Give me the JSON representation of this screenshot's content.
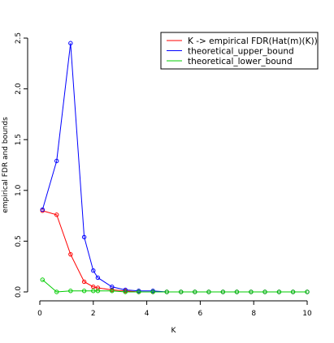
{
  "chart_data": {
    "type": "line",
    "xlabel": "K",
    "ylabel": "empirical FDR and bounds",
    "xlim": [
      0,
      10
    ],
    "ylim": [
      0,
      2.5
    ],
    "xticks": [
      0,
      2,
      4,
      6,
      8,
      10
    ],
    "yticks": [
      0.0,
      0.5,
      1.0,
      1.5,
      2.0,
      2.5
    ],
    "xtick_labels": [
      "0",
      "2",
      "4",
      "6",
      "8",
      "10"
    ],
    "ytick_labels": [
      "0.0",
      "0.5",
      "1.0",
      "1.5",
      "2.0",
      "2.5"
    ],
    "legend_position": "top-right",
    "marker": "open-circle",
    "series": [
      {
        "name": "K -> empirical FDR(Hat(m)(K))",
        "color": "#ff0000",
        "x": [
          0.1,
          0.63,
          1.15,
          1.66,
          2.0,
          2.17,
          2.7,
          3.2,
          3.7,
          4.23,
          4.75,
          5.28,
          5.8,
          6.32,
          6.85,
          7.37,
          7.9,
          8.42,
          8.95,
          9.47,
          10.0
        ],
        "y": [
          0.8,
          0.76,
          0.37,
          0.1,
          0.05,
          0.04,
          0.02,
          0.01,
          0.0,
          0.0,
          0.0,
          0.0,
          0.0,
          0.0,
          0.0,
          0.0,
          0.0,
          0.0,
          0.0,
          0.0,
          0.0
        ]
      },
      {
        "name": "theoretical_upper_bound",
        "color": "#0000ff",
        "x": [
          0.1,
          0.63,
          1.15,
          1.66,
          2.0,
          2.17,
          2.7,
          3.2,
          3.7,
          4.23,
          4.75,
          5.28,
          5.8,
          6.32,
          6.85,
          7.37,
          7.9,
          8.42,
          8.95,
          9.47,
          10.0
        ],
        "y": [
          0.81,
          1.29,
          2.45,
          0.54,
          0.21,
          0.14,
          0.05,
          0.02,
          0.01,
          0.01,
          0.0,
          0.0,
          0.0,
          0.0,
          0.0,
          0.0,
          0.0,
          0.0,
          0.0,
          0.0,
          0.0
        ]
      },
      {
        "name": "theoretical_lower_bound",
        "color": "#00cc00",
        "x": [
          0.1,
          0.63,
          1.15,
          1.66,
          2.0,
          2.17,
          2.7,
          3.2,
          3.7,
          4.23,
          4.75,
          5.28,
          5.8,
          6.32,
          6.85,
          7.37,
          7.9,
          8.42,
          8.95,
          9.47,
          10.0
        ],
        "y": [
          0.12,
          0.0,
          0.01,
          0.01,
          0.01,
          0.01,
          0.01,
          0.0,
          0.0,
          0.0,
          0.0,
          0.0,
          0.0,
          0.0,
          0.0,
          0.0,
          0.0,
          0.0,
          0.0,
          0.0,
          0.0
        ]
      }
    ]
  }
}
